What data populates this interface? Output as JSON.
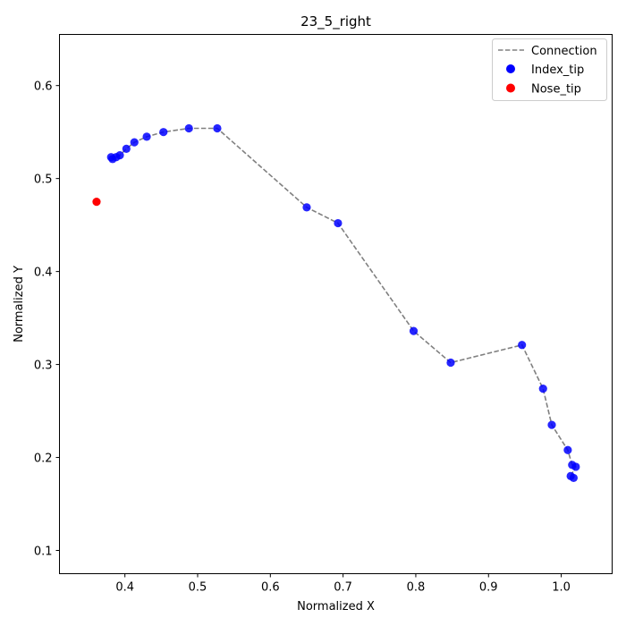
{
  "chart_data": {
    "type": "scatter",
    "title": "23_5_right",
    "xlabel": "Normalized X",
    "ylabel": "Normalized Y",
    "xlim": [
      0.31,
      1.07
    ],
    "ylim": [
      0.075,
      0.655
    ],
    "xticks": [
      0.4,
      0.5,
      0.6,
      0.7,
      0.8,
      0.9,
      1.0
    ],
    "yticks": [
      0.1,
      0.2,
      0.3,
      0.4,
      0.5,
      0.6
    ],
    "xtick_labels": [
      "0.4",
      "0.5",
      "0.6",
      "0.7",
      "0.8",
      "0.9",
      "1.0"
    ],
    "ytick_labels": [
      "0.1",
      "0.2",
      "0.3",
      "0.4",
      "0.5",
      "0.6"
    ],
    "grid": false,
    "legend_position": "top-right",
    "series": [
      {
        "name": "Connection",
        "kind": "dashed-line",
        "color": "#808080",
        "x": [
          0.381,
          0.383,
          0.388,
          0.393,
          0.402,
          0.413,
          0.43,
          0.453,
          0.488,
          0.527,
          0.65,
          0.693,
          0.797,
          0.848,
          0.946,
          0.975,
          0.987,
          1.009,
          1.015,
          1.02,
          1.013,
          1.017
        ],
        "y": [
          0.523,
          0.521,
          0.523,
          0.525,
          0.532,
          0.539,
          0.545,
          0.55,
          0.554,
          0.554,
          0.469,
          0.452,
          0.336,
          0.302,
          0.321,
          0.274,
          0.235,
          0.208,
          0.192,
          0.19,
          0.18,
          0.178
        ]
      },
      {
        "name": "Index_tip",
        "kind": "points",
        "color": "#0000ff",
        "x": [
          0.381,
          0.383,
          0.388,
          0.393,
          0.402,
          0.413,
          0.43,
          0.453,
          0.488,
          0.527,
          0.65,
          0.693,
          0.797,
          0.848,
          0.946,
          0.975,
          0.987,
          1.009,
          1.015,
          1.02,
          1.013,
          1.017
        ],
        "y": [
          0.523,
          0.521,
          0.523,
          0.525,
          0.532,
          0.539,
          0.545,
          0.55,
          0.554,
          0.554,
          0.469,
          0.452,
          0.336,
          0.302,
          0.321,
          0.274,
          0.235,
          0.208,
          0.192,
          0.19,
          0.18,
          0.178
        ]
      },
      {
        "name": "Nose_tip",
        "kind": "points",
        "color": "#ff0000",
        "x": [
          0.361
        ],
        "y": [
          0.475
        ]
      }
    ]
  }
}
